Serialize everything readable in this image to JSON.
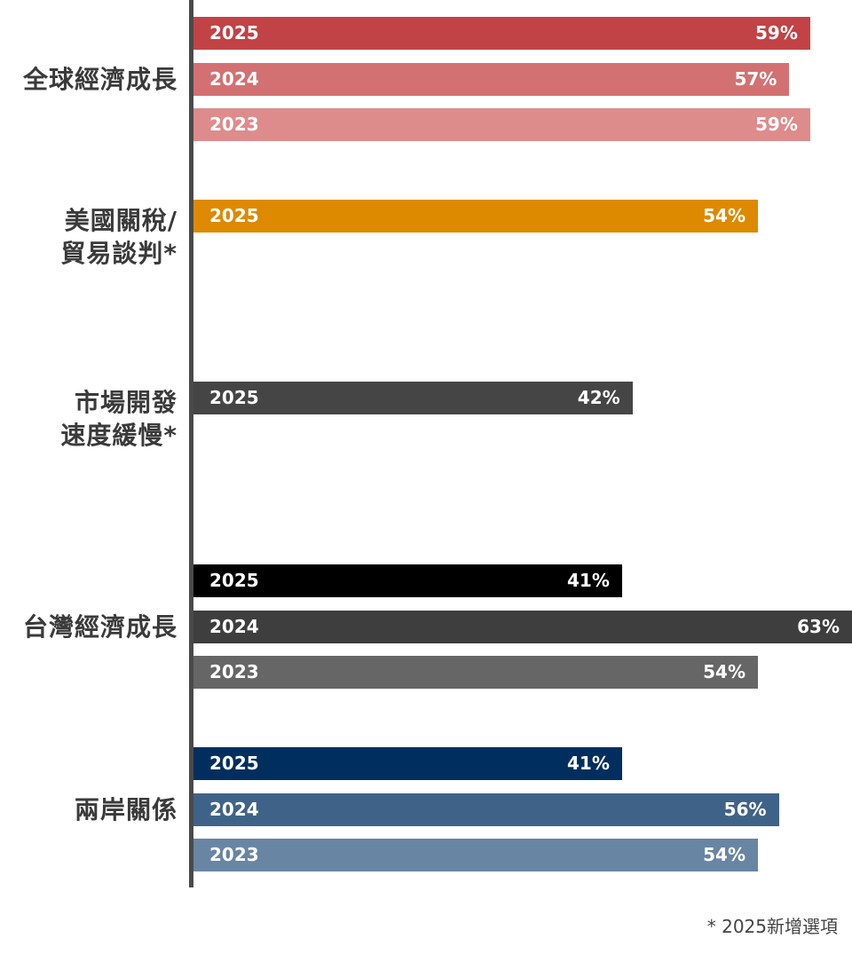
{
  "chart_data": {
    "type": "bar",
    "orientation": "horizontal",
    "xlim": [
      0,
      63
    ],
    "groups": [
      {
        "label_lines": [
          "全球經濟成長"
        ],
        "bars": [
          {
            "year": "2025",
            "value": 59,
            "label": "59%",
            "color": "#c24345"
          },
          {
            "year": "2024",
            "value": 57,
            "label": "57%",
            "color": "#d37172"
          },
          {
            "year": "2023",
            "value": 59,
            "label": "59%",
            "color": "#de8b8c"
          }
        ]
      },
      {
        "label_lines": [
          "美國關稅/",
          "貿易談判*"
        ],
        "bars": [
          {
            "year": "2025",
            "value": 54,
            "label": "54%",
            "color": "#dd8a00"
          }
        ]
      },
      {
        "label_lines": [
          "市場開發",
          "速度緩慢*"
        ],
        "bars": [
          {
            "year": "2025",
            "value": 42,
            "label": "42%",
            "color": "#454545"
          }
        ]
      },
      {
        "label_lines": [
          "台灣經濟成長"
        ],
        "bars": [
          {
            "year": "2025",
            "value": 41,
            "label": "41%",
            "color": "#000000"
          },
          {
            "year": "2024",
            "value": 63,
            "label": "63%",
            "color": "#3e3e3e"
          },
          {
            "year": "2023",
            "value": 54,
            "label": "54%",
            "color": "#666666"
          }
        ]
      },
      {
        "label_lines": [
          "兩岸關係"
        ],
        "bars": [
          {
            "year": "2025",
            "value": 41,
            "label": "41%",
            "color": "#002f5f"
          },
          {
            "year": "2024",
            "value": 56,
            "label": "56%",
            "color": "#3f6388"
          },
          {
            "year": "2023",
            "value": 54,
            "label": "54%",
            "color": "#6885a3"
          }
        ]
      }
    ]
  },
  "footnote": "* 2025新增選項"
}
